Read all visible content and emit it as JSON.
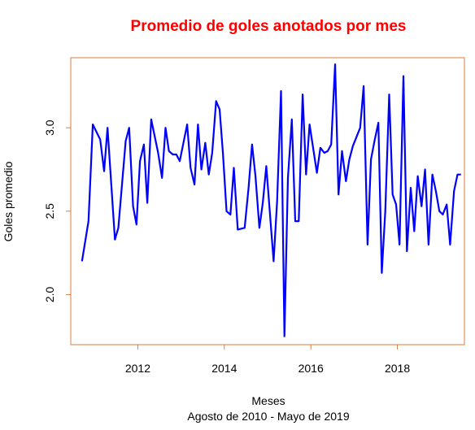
{
  "chart_data": {
    "type": "line",
    "title": "Promedio de goles anotados por mes",
    "title_color": "#ff0000",
    "xlabel": "Meses",
    "xlabel_sub": "Agosto de 2010 - Mayo de 2019",
    "ylabel": "Goles promedio",
    "xlim": [
      2010.45,
      2019.55
    ],
    "ylim": [
      1.7,
      3.42
    ],
    "x_ticks": [
      2012,
      2014,
      2016,
      2018
    ],
    "x_tick_labels": [
      "2012",
      "2014",
      "2016",
      "2018"
    ],
    "y_ticks": [
      2.0,
      2.5,
      3.0
    ],
    "y_tick_labels": [
      "2.0",
      "2.5",
      "3.0"
    ],
    "frame_color": "#e07b39",
    "line_color": "#0000ff",
    "grid": false,
    "legend": "none",
    "series": [
      {
        "x": [
          2010.71,
          2010.86,
          2010.96,
          2011.13,
          2011.22,
          2011.3,
          2011.47,
          2011.55,
          2011.72,
          2011.8,
          2011.89,
          2011.97,
          2012.05,
          2012.14,
          2012.22,
          2012.31,
          2012.47,
          2012.56,
          2012.64,
          2012.72,
          2012.81,
          2012.89,
          2012.97,
          2013.14,
          2013.22,
          2013.31,
          2013.39,
          2013.47,
          2013.56,
          2013.64,
          2013.72,
          2013.81,
          2013.89,
          2013.97,
          2014.05,
          2014.14,
          2014.22,
          2014.31,
          2014.47,
          2014.56,
          2014.64,
          2014.72,
          2014.81,
          2014.89,
          2014.97,
          2015.14,
          2015.22,
          2015.31,
          2015.39,
          2015.47,
          2015.56,
          2015.64,
          2015.72,
          2015.81,
          2015.89,
          2015.97,
          2016.14,
          2016.22,
          2016.31,
          2016.39,
          2016.47,
          2016.56,
          2016.64,
          2016.72,
          2016.81,
          2016.89,
          2016.97,
          2017.14,
          2017.22,
          2017.31,
          2017.39,
          2017.47,
          2017.56,
          2017.64,
          2017.72,
          2017.81,
          2017.89,
          2017.97,
          2018.05,
          2018.14,
          2018.22,
          2018.31,
          2018.39,
          2018.47,
          2018.56,
          2018.64,
          2018.72,
          2018.81,
          2018.89,
          2018.97,
          2019.05,
          2019.14,
          2019.22,
          2019.31,
          2019.39,
          2019.47
        ],
        "y": [
          2.2,
          2.44,
          3.02,
          2.93,
          2.74,
          3.0,
          2.33,
          2.4,
          2.92,
          3.0,
          2.53,
          2.42,
          2.8,
          2.9,
          2.55,
          3.05,
          2.85,
          2.7,
          3.0,
          2.86,
          2.84,
          2.84,
          2.8,
          3.02,
          2.76,
          2.66,
          3.02,
          2.75,
          2.91,
          2.72,
          2.85,
          3.16,
          3.11,
          2.84,
          2.5,
          2.48,
          2.76,
          2.39,
          2.4,
          2.64,
          2.9,
          2.71,
          2.4,
          2.55,
          2.77,
          2.2,
          2.56,
          3.22,
          1.75,
          2.7,
          3.05,
          2.44,
          2.44,
          3.2,
          2.72,
          3.02,
          2.73,
          2.88,
          2.85,
          2.86,
          2.9,
          3.38,
          2.6,
          2.86,
          2.68,
          2.81,
          2.89,
          3.0,
          3.25,
          2.3,
          2.81,
          2.92,
          3.03,
          2.13,
          2.5,
          3.2,
          2.6,
          2.54,
          2.3,
          3.31,
          2.26,
          2.64,
          2.38,
          2.71,
          2.53,
          2.75,
          2.3,
          2.72,
          2.62,
          2.5,
          2.48,
          2.54,
          2.3,
          2.62,
          2.72,
          2.72
        ]
      }
    ]
  }
}
